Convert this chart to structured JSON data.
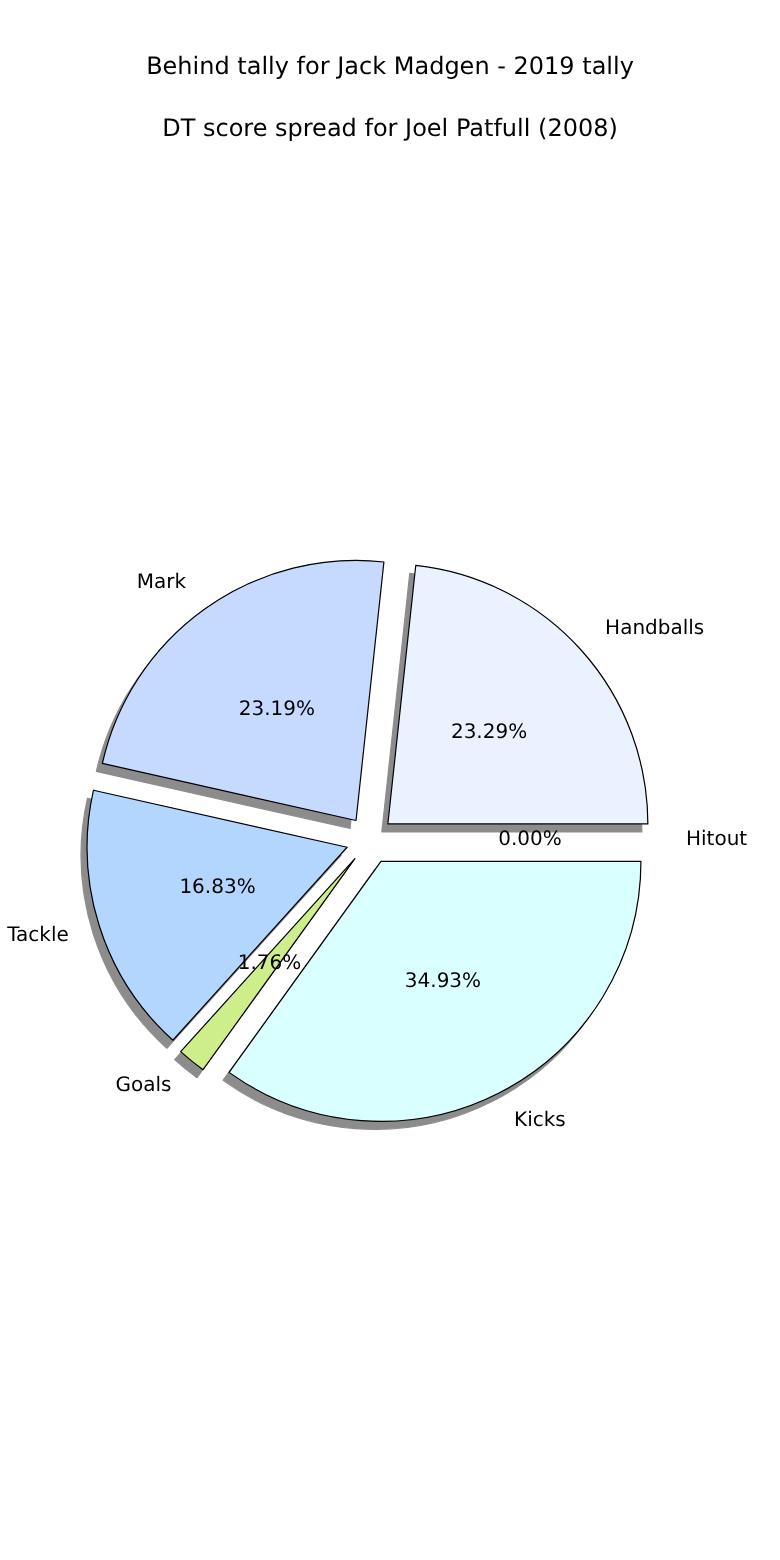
{
  "chart_data": {
    "type": "pie",
    "title": "Behind tally for Jack Madgen - 2019 tally",
    "subtitle": "DT score spread for Joel Patfull (2008)",
    "categories": [
      "Handballs",
      "Mark",
      "Tackle",
      "Goals",
      "Kicks",
      "Hitout"
    ],
    "values": [
      23.29,
      23.19,
      16.83,
      1.76,
      34.93,
      0
    ],
    "value_labels": [
      "23.29%",
      "23.19%",
      "16.83%",
      "1.76%",
      "34.93%",
      "0.00%"
    ],
    "colors": [
      "#eaf1ff",
      "#c6d9ff",
      "#b3d6ff",
      "#cdee8a",
      "#d9ffff",
      "#ffffff"
    ],
    "legend": false
  }
}
